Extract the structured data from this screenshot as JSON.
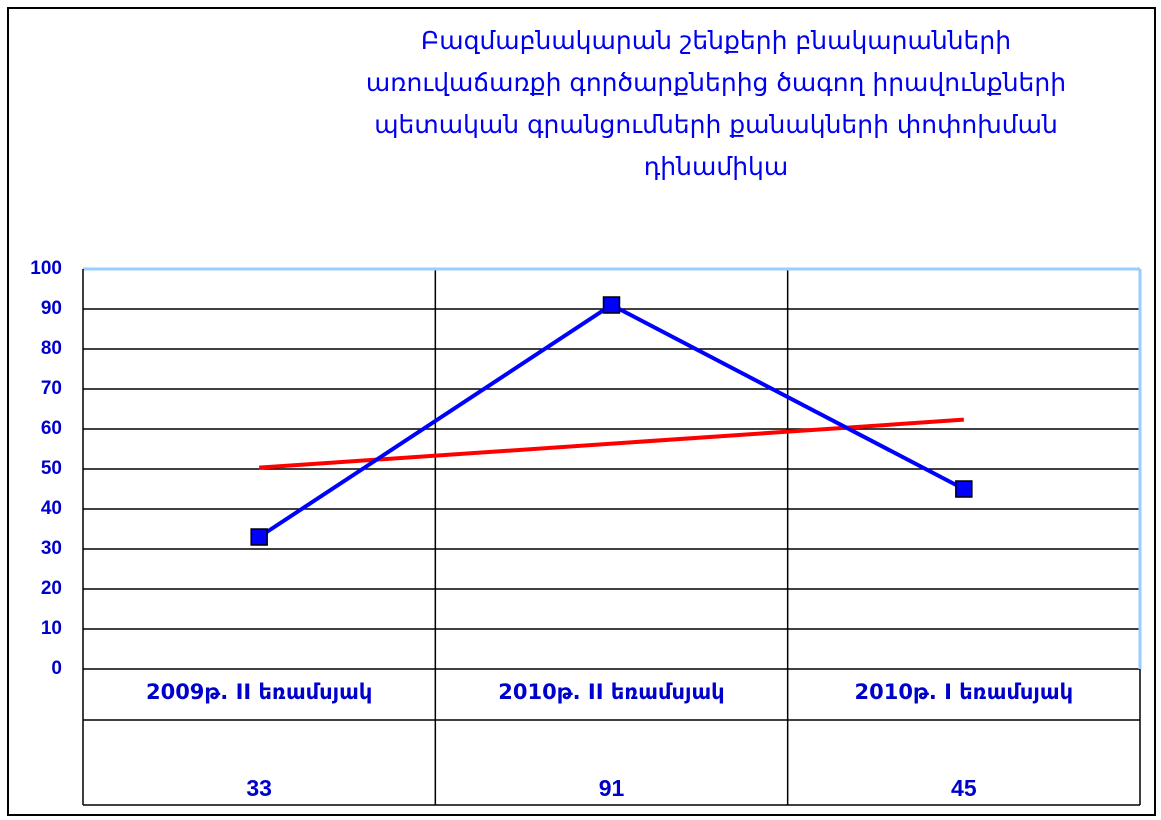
{
  "chart_data": {
    "type": "line",
    "title": [
      "Բազմաբնակարան շենքերի բնակարանների",
      "առուվաճառքի գործարքներից ծագող իրավունքների",
      "պետական գրանցումների քանակների   փոփոխման",
      "դինամիկա"
    ],
    "categories": [
      "2009թ. II եռամսյակ",
      "2010թ. II եռամսյակ",
      "2010թ.  I եռամսյակ"
    ],
    "values": [
      33,
      91,
      45
    ],
    "color": "#0000ff",
    "trendline": {
      "color": "#ff0000"
    },
    "ylim": [
      0,
      100
    ],
    "yticks": [
      0,
      10,
      20,
      30,
      40,
      50,
      60,
      70,
      80,
      90,
      100
    ],
    "grid": true
  }
}
